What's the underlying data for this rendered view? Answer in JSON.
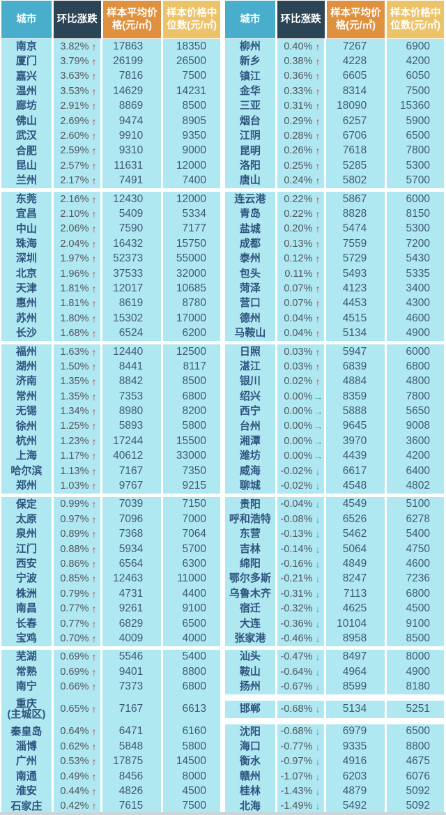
{
  "icons": {
    "up": "↑",
    "down": "↓",
    "flat": "→"
  },
  "colors": {
    "city_header_bg": "#48aecb",
    "change_header_bg": "#2b4557",
    "avg_header_bg": "#e09140",
    "median_header_bg": "#edc369",
    "row_bg": "#b0e8f2",
    "up_arrow": "#c23a2c",
    "down_arrow": "#2ea9c5",
    "flat_arrow": "#33b377",
    "city_text": "#2f537e",
    "number_text": "#3f5a75"
  },
  "chart_data": {
    "type": "table",
    "columns": [
      "城市",
      "环比涨跌",
      "样本平均价格(元/㎡)",
      "样本价格中位数(元/㎡)"
    ],
    "group_breaks": {
      "left": [
        {
          "after": 10,
          "h": 5
        },
        {
          "after": 20,
          "h": 5
        },
        {
          "after": 30,
          "h": 5
        },
        {
          "after": 40,
          "h": 5
        }
      ],
      "right": [
        {
          "after": 10,
          "h": 5
        },
        {
          "after": 20,
          "h": 5
        },
        {
          "after": 30,
          "h": 5
        },
        {
          "after": 40,
          "h": 5
        },
        {
          "after": 43,
          "h": 9
        },
        {
          "after": 44,
          "h": 9
        }
      ]
    },
    "left_rows": [
      {
        "city": "南京",
        "change": "3.82%",
        "dir": "up",
        "avg": 17863,
        "median": 18350
      },
      {
        "city": "厦门",
        "change": "3.79%",
        "dir": "up",
        "avg": 26199,
        "median": 26500
      },
      {
        "city": "嘉兴",
        "change": "3.63%",
        "dir": "up",
        "avg": 7816,
        "median": 7500
      },
      {
        "city": "温州",
        "change": "3.53%",
        "dir": "up",
        "avg": 14629,
        "median": 14231
      },
      {
        "city": "廊坊",
        "change": "2.91%",
        "dir": "up",
        "avg": 8869,
        "median": 8500
      },
      {
        "city": "佛山",
        "change": "2.69%",
        "dir": "up",
        "avg": 9474,
        "median": 8905
      },
      {
        "city": "武汉",
        "change": "2.60%",
        "dir": "up",
        "avg": 9910,
        "median": 9350
      },
      {
        "city": "合肥",
        "change": "2.59%",
        "dir": "up",
        "avg": 9310,
        "median": 9000
      },
      {
        "city": "昆山",
        "change": "2.57%",
        "dir": "up",
        "avg": 11631,
        "median": 12000
      },
      {
        "city": "兰州",
        "change": "2.17%",
        "dir": "up",
        "avg": 7491,
        "median": 7400
      },
      {
        "city": "东莞",
        "change": "2.16%",
        "dir": "up",
        "avg": 12430,
        "median": 12000
      },
      {
        "city": "宜昌",
        "change": "2.10%",
        "dir": "up",
        "avg": 5409,
        "median": 5334
      },
      {
        "city": "中山",
        "change": "2.06%",
        "dir": "up",
        "avg": 7590,
        "median": 7177
      },
      {
        "city": "珠海",
        "change": "2.04%",
        "dir": "up",
        "avg": 16432,
        "median": 15750
      },
      {
        "city": "深圳",
        "change": "1.97%",
        "dir": "up",
        "avg": 52373,
        "median": 55000
      },
      {
        "city": "北京",
        "change": "1.96%",
        "dir": "up",
        "avg": 37533,
        "median": 32000
      },
      {
        "city": "天津",
        "change": "1.81%",
        "dir": "up",
        "avg": 12017,
        "median": 10685
      },
      {
        "city": "惠州",
        "change": "1.81%",
        "dir": "up",
        "avg": 8619,
        "median": 8780
      },
      {
        "city": "苏州",
        "change": "1.80%",
        "dir": "up",
        "avg": 15302,
        "median": 17000
      },
      {
        "city": "长沙",
        "change": "1.68%",
        "dir": "up",
        "avg": 6524,
        "median": 6200
      },
      {
        "city": "福州",
        "change": "1.63%",
        "dir": "up",
        "avg": 12440,
        "median": 12500
      },
      {
        "city": "湖州",
        "change": "1.50%",
        "dir": "up",
        "avg": 8441,
        "median": 8117
      },
      {
        "city": "济南",
        "change": "1.35%",
        "dir": "up",
        "avg": 8842,
        "median": 8500
      },
      {
        "city": "常州",
        "change": "1.35%",
        "dir": "up",
        "avg": 7353,
        "median": 6800
      },
      {
        "city": "无锡",
        "change": "1.34%",
        "dir": "up",
        "avg": 8980,
        "median": 8200
      },
      {
        "city": "徐州",
        "change": "1.25%",
        "dir": "up",
        "avg": 5893,
        "median": 5800
      },
      {
        "city": "杭州",
        "change": "1.23%",
        "dir": "up",
        "avg": 17244,
        "median": 15500
      },
      {
        "city": "上海",
        "change": "1.17%",
        "dir": "up",
        "avg": 40612,
        "median": 33000
      },
      {
        "city": "哈尔滨",
        "change": "1.13%",
        "dir": "up",
        "avg": 7167,
        "median": 7350
      },
      {
        "city": "郑州",
        "change": "1.03%",
        "dir": "up",
        "avg": 9767,
        "median": 9215
      },
      {
        "city": "保定",
        "change": "0.99%",
        "dir": "up",
        "avg": 7039,
        "median": 7150
      },
      {
        "city": "太原",
        "change": "0.97%",
        "dir": "up",
        "avg": 7096,
        "median": 7000
      },
      {
        "city": "泉州",
        "change": "0.89%",
        "dir": "up",
        "avg": 7368,
        "median": 7064
      },
      {
        "city": "江门",
        "change": "0.88%",
        "dir": "up",
        "avg": 5934,
        "median": 5700
      },
      {
        "city": "西安",
        "change": "0.86%",
        "dir": "up",
        "avg": 6564,
        "median": 6300
      },
      {
        "city": "宁波",
        "change": "0.85%",
        "dir": "up",
        "avg": 12463,
        "median": 11000
      },
      {
        "city": "株洲",
        "change": "0.79%",
        "dir": "up",
        "avg": 4731,
        "median": 4400
      },
      {
        "city": "南昌",
        "change": "0.77%",
        "dir": "up",
        "avg": 9261,
        "median": 9100
      },
      {
        "city": "长春",
        "change": "0.77%",
        "dir": "up",
        "avg": 6829,
        "median": 6500
      },
      {
        "city": "宝鸡",
        "change": "0.70%",
        "dir": "up",
        "avg": 4009,
        "median": 4000
      },
      {
        "city": "芜湖",
        "change": "0.69%",
        "dir": "up",
        "avg": 5546,
        "median": 5400
      },
      {
        "city": "常熟",
        "change": "0.69%",
        "dir": "up",
        "avg": 9401,
        "median": 8800
      },
      {
        "city": "南宁",
        "change": "0.66%",
        "dir": "up",
        "avg": 7373,
        "median": 6800
      },
      {
        "city": "重庆",
        "city2": "(主城区)",
        "h": 43,
        "change": "0.65%",
        "dir": "up",
        "avg": 7167,
        "median": 6613
      },
      {
        "city": "秦皇岛",
        "change": "0.64%",
        "dir": "up",
        "avg": 6471,
        "median": 6160
      },
      {
        "city": "淄博",
        "change": "0.62%",
        "dir": "up",
        "avg": 5848,
        "median": 5800
      },
      {
        "city": "广州",
        "change": "0.53%",
        "dir": "up",
        "avg": 17875,
        "median": 14500
      },
      {
        "city": "南通",
        "change": "0.49%",
        "dir": "up",
        "avg": 8456,
        "median": 8000
      },
      {
        "city": "淮安",
        "change": "0.44%",
        "dir": "up",
        "avg": 4826,
        "median": 4500
      },
      {
        "city": "石家庄",
        "change": "0.42%",
        "dir": "up",
        "avg": 7615,
        "median": 7500
      }
    ],
    "right_rows": [
      {
        "city": "柳州",
        "change": "0.40%",
        "dir": "up",
        "avg": 7267,
        "median": 6900
      },
      {
        "city": "新乡",
        "change": "0.38%",
        "dir": "up",
        "avg": 4228,
        "median": 4200
      },
      {
        "city": "镇江",
        "change": "0.36%",
        "dir": "up",
        "avg": 6605,
        "median": 6050
      },
      {
        "city": "金华",
        "change": "0.33%",
        "dir": "up",
        "avg": 8314,
        "median": 7500
      },
      {
        "city": "三亚",
        "change": "0.31%",
        "dir": "up",
        "avg": 18090,
        "median": 15360
      },
      {
        "city": "烟台",
        "change": "0.29%",
        "dir": "up",
        "avg": 6257,
        "median": 5900
      },
      {
        "city": "江阴",
        "change": "0.28%",
        "dir": "up",
        "avg": 6706,
        "median": 6500
      },
      {
        "city": "昆明",
        "change": "0.26%",
        "dir": "up",
        "avg": 7618,
        "median": 7800
      },
      {
        "city": "洛阳",
        "change": "0.25%",
        "dir": "up",
        "avg": 5285,
        "median": 5300
      },
      {
        "city": "唐山",
        "change": "0.24%",
        "dir": "up",
        "avg": 5802,
        "median": 5700
      },
      {
        "city": "连云港",
        "change": "0.22%",
        "dir": "up",
        "avg": 5867,
        "median": 6000
      },
      {
        "city": "青岛",
        "change": "0.22%",
        "dir": "up",
        "avg": 8828,
        "median": 8150
      },
      {
        "city": "盐城",
        "change": "0.20%",
        "dir": "up",
        "avg": 5474,
        "median": 5300
      },
      {
        "city": "成都",
        "change": "0.13%",
        "dir": "up",
        "avg": 7559,
        "median": 7200
      },
      {
        "city": "泰州",
        "change": "0.12%",
        "dir": "up",
        "avg": 5729,
        "median": 5430
      },
      {
        "city": "包头",
        "change": "0.11%",
        "dir": "up",
        "avg": 5493,
        "median": 5335
      },
      {
        "city": "菏泽",
        "change": "0.07%",
        "dir": "up",
        "avg": 4123,
        "median": 3400
      },
      {
        "city": "营口",
        "change": "0.07%",
        "dir": "up",
        "avg": 4453,
        "median": 4300
      },
      {
        "city": "德州",
        "change": "0.04%",
        "dir": "up",
        "avg": 4515,
        "median": 4600
      },
      {
        "city": "马鞍山",
        "change": "0.04%",
        "dir": "up",
        "avg": 5134,
        "median": 4900
      },
      {
        "city": "日照",
        "change": "0.03%",
        "dir": "up",
        "avg": 5947,
        "median": 6000
      },
      {
        "city": "湛江",
        "change": "0.03%",
        "dir": "up",
        "avg": 6839,
        "median": 6800
      },
      {
        "city": "银川",
        "change": "0.02%",
        "dir": "up",
        "avg": 4884,
        "median": 4800
      },
      {
        "city": "绍兴",
        "change": "0.00%",
        "dir": "flat",
        "avg": 8359,
        "median": 7800
      },
      {
        "city": "西宁",
        "change": "0.00%",
        "dir": "flat",
        "avg": 5888,
        "median": 5650
      },
      {
        "city": "台州",
        "change": "0.00%",
        "dir": "flat",
        "avg": 9645,
        "median": 9008
      },
      {
        "city": "湘潭",
        "change": "0.00%",
        "dir": "flat",
        "avg": 3970,
        "median": 3600
      },
      {
        "city": "潍坊",
        "change": "0.00%",
        "dir": "flat",
        "avg": 4439,
        "median": 4200
      },
      {
        "city": "威海",
        "change": "-0.02%",
        "dir": "down",
        "avg": 6617,
        "median": 6400
      },
      {
        "city": "聊城",
        "change": "-0.02%",
        "dir": "down",
        "avg": 4548,
        "median": 4802
      },
      {
        "city": "贵阳",
        "change": "-0.04%",
        "dir": "down",
        "avg": 4549,
        "median": 5100
      },
      {
        "city": "呼和浩特",
        "change": "-0.08%",
        "dir": "down",
        "avg": 6526,
        "median": 6278
      },
      {
        "city": "东营",
        "change": "-0.13%",
        "dir": "down",
        "avg": 5462,
        "median": 5400
      },
      {
        "city": "吉林",
        "change": "-0.14%",
        "dir": "down",
        "avg": 5064,
        "median": 4750
      },
      {
        "city": "绵阳",
        "change": "-0.16%",
        "dir": "down",
        "avg": 4849,
        "median": 4600
      },
      {
        "city": "鄂尔多斯",
        "change": "-0.21%",
        "dir": "down",
        "avg": 8247,
        "median": 7236
      },
      {
        "city": "乌鲁木齐",
        "change": "-0.31%",
        "dir": "down",
        "avg": 7113,
        "median": 6800
      },
      {
        "city": "宿迁",
        "change": "-0.32%",
        "dir": "down",
        "avg": 4625,
        "median": 4500
      },
      {
        "city": "大连",
        "change": "-0.36%",
        "dir": "down",
        "avg": 10104,
        "median": 9100
      },
      {
        "city": "张家港",
        "change": "-0.46%",
        "dir": "down",
        "avg": 8958,
        "median": 8500
      },
      {
        "city": "汕头",
        "change": "-0.47%",
        "dir": "down",
        "avg": 8497,
        "median": 8000
      },
      {
        "city": "鞍山",
        "change": "-0.64%",
        "dir": "down",
        "avg": 4964,
        "median": 4900
      },
      {
        "city": "扬州",
        "change": "-0.67%",
        "dir": "down",
        "avg": 8599,
        "median": 8180
      },
      {
        "city": "邯郸",
        "h": 25,
        "change": "-0.68%",
        "dir": "down",
        "avg": 5134,
        "median": 5251
      },
      {
        "city": "沈阳",
        "change": "-0.68%",
        "dir": "down",
        "avg": 6979,
        "median": 6500
      },
      {
        "city": "海口",
        "change": "-0.77%",
        "dir": "down",
        "avg": 9335,
        "median": 8800
      },
      {
        "city": "衡水",
        "change": "-0.97%",
        "dir": "down",
        "avg": 4916,
        "median": 4675
      },
      {
        "city": "赣州",
        "change": "-1.07%",
        "dir": "down",
        "avg": 6203,
        "median": 6076
      },
      {
        "city": "桂林",
        "change": "-1.43%",
        "dir": "down",
        "avg": 4879,
        "median": 5092
      },
      {
        "city": "北海",
        "change": "-1.49%",
        "dir": "down",
        "avg": 5492,
        "median": 5092
      }
    ]
  }
}
